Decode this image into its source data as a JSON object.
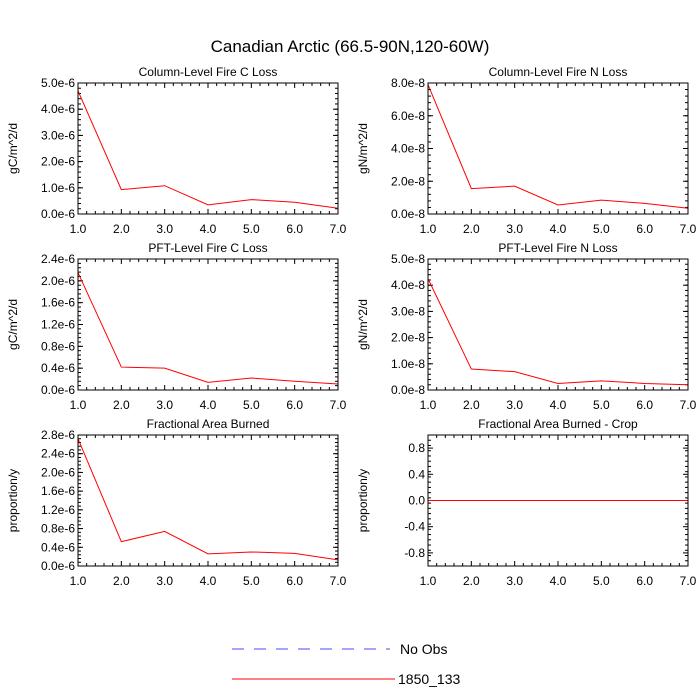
{
  "figure": {
    "title": "Canadian Arctic (66.5-90N,120-60W)"
  },
  "legend": {
    "entries": [
      {
        "label": "No Obs",
        "color": "#4a4aff",
        "dash": "dashed"
      },
      {
        "label": "1850_133",
        "color": "#ff0000",
        "dash": "solid"
      }
    ]
  },
  "chart_data": [
    {
      "type": "line",
      "title": "Column-Level Fire C Loss",
      "ylabel": "gC/m^2/d",
      "xlim": [
        1.0,
        7.0
      ],
      "ylim": [
        0,
        5e-06
      ],
      "xticks": [
        "1.0",
        "2.0",
        "3.0",
        "4.0",
        "5.0",
        "6.0",
        "7.0"
      ],
      "yticks": [
        {
          "value": 0,
          "label": "0.0e-6"
        },
        {
          "value": 1e-06,
          "label": "1.0e-6"
        },
        {
          "value": 2e-06,
          "label": "2.0e-6"
        },
        {
          "value": 3e-06,
          "label": "3.0e-6"
        },
        {
          "value": 4e-06,
          "label": "4.0e-6"
        },
        {
          "value": 5e-06,
          "label": "5.0e-6"
        }
      ],
      "series": [
        {
          "name": "1850_133",
          "x": [
            1,
            2,
            3,
            4,
            5,
            6,
            7
          ],
          "values": [
            4.7e-06,
            9.3e-07,
            1.08e-06,
            3.5e-07,
            5.5e-07,
            4.5e-07,
            2.2e-07
          ]
        }
      ]
    },
    {
      "type": "line",
      "title": "Column-Level Fire N Loss",
      "ylabel": "gN/m^2/d",
      "xlim": [
        1.0,
        7.0
      ],
      "ylim": [
        0,
        8e-08
      ],
      "xticks": [
        "1.0",
        "2.0",
        "3.0",
        "4.0",
        "5.0",
        "6.0",
        "7.0"
      ],
      "yticks": [
        {
          "value": 0,
          "label": "0.0e-8"
        },
        {
          "value": 2e-08,
          "label": "2.0e-8"
        },
        {
          "value": 4e-08,
          "label": "4.0e-8"
        },
        {
          "value": 6e-08,
          "label": "6.0e-8"
        },
        {
          "value": 8e-08,
          "label": "8.0e-8"
        }
      ],
      "series": [
        {
          "name": "1850_133",
          "x": [
            1,
            2,
            3,
            4,
            5,
            6,
            7
          ],
          "values": [
            7.9e-08,
            1.55e-08,
            1.7e-08,
            5.5e-09,
            8.5e-09,
            6.5e-09,
            3.5e-09
          ]
        }
      ]
    },
    {
      "type": "line",
      "title": "PFT-Level Fire C Loss",
      "ylabel": "gC/m^2/d",
      "xlim": [
        1.0,
        7.0
      ],
      "ylim": [
        0,
        2.4e-06
      ],
      "xticks": [
        "1.0",
        "2.0",
        "3.0",
        "4.0",
        "5.0",
        "6.0",
        "7.0"
      ],
      "yticks": [
        {
          "value": 0,
          "label": "0.0e-6"
        },
        {
          "value": 4e-07,
          "label": "0.4e-6"
        },
        {
          "value": 8e-07,
          "label": "0.8e-6"
        },
        {
          "value": 1.2e-06,
          "label": "1.2e-6"
        },
        {
          "value": 1.6e-06,
          "label": "1.6e-6"
        },
        {
          "value": 2e-06,
          "label": "2.0e-6"
        },
        {
          "value": 2.4e-06,
          "label": "2.4e-6"
        }
      ],
      "series": [
        {
          "name": "1850_133",
          "x": [
            1,
            2,
            3,
            4,
            5,
            6,
            7
          ],
          "values": [
            2.15e-06,
            4.2e-07,
            4e-07,
            1.4e-07,
            2.2e-07,
            1.6e-07,
            1.1e-07
          ]
        }
      ]
    },
    {
      "type": "line",
      "title": "PFT-Level Fire N Loss",
      "ylabel": "gN/m^2/d",
      "xlim": [
        1.0,
        7.0
      ],
      "ylim": [
        0,
        5e-08
      ],
      "xticks": [
        "1.0",
        "2.0",
        "3.0",
        "4.0",
        "5.0",
        "6.0",
        "7.0"
      ],
      "yticks": [
        {
          "value": 0,
          "label": "0.0e-8"
        },
        {
          "value": 1e-08,
          "label": "1.0e-8"
        },
        {
          "value": 2e-08,
          "label": "2.0e-8"
        },
        {
          "value": 3e-08,
          "label": "3.0e-8"
        },
        {
          "value": 4e-08,
          "label": "4.0e-8"
        },
        {
          "value": 5e-08,
          "label": "5.0e-8"
        }
      ],
      "series": [
        {
          "name": "1850_133",
          "x": [
            1,
            2,
            3,
            4,
            5,
            6,
            7
          ],
          "values": [
            4.25e-08,
            8e-09,
            7e-09,
            2.5e-09,
            3.5e-09,
            2.5e-09,
            2e-09
          ]
        }
      ]
    },
    {
      "type": "line",
      "title": "Fractional Area Burned",
      "ylabel": "proportion/y",
      "xlim": [
        1.0,
        7.0
      ],
      "ylim": [
        0,
        2.8e-06
      ],
      "xticks": [
        "1.0",
        "2.0",
        "3.0",
        "4.0",
        "5.0",
        "6.0",
        "7.0"
      ],
      "yticks": [
        {
          "value": 0,
          "label": "0.0e-6"
        },
        {
          "value": 4e-07,
          "label": "0.4e-6"
        },
        {
          "value": 8e-07,
          "label": "0.8e-6"
        },
        {
          "value": 1.2e-06,
          "label": "1.2e-6"
        },
        {
          "value": 1.6e-06,
          "label": "1.6e-6"
        },
        {
          "value": 2e-06,
          "label": "2.0e-6"
        },
        {
          "value": 2.4e-06,
          "label": "2.4e-6"
        },
        {
          "value": 2.8e-06,
          "label": "2.8e-6"
        }
      ],
      "series": [
        {
          "name": "1850_133",
          "x": [
            1,
            2,
            3,
            4,
            5,
            6,
            7
          ],
          "values": [
            2.72e-06,
            5.2e-07,
            7.4e-07,
            2.6e-07,
            3e-07,
            2.7e-07,
            1.3e-07
          ]
        }
      ]
    },
    {
      "type": "line",
      "title": "Fractional Area Burned - Crop",
      "ylabel": "proportion/y",
      "xlim": [
        1.0,
        7.0
      ],
      "ylim": [
        -1.0,
        1.0
      ],
      "xticks": [
        "1.0",
        "2.0",
        "3.0",
        "4.0",
        "5.0",
        "6.0",
        "7.0"
      ],
      "yticks": [
        {
          "value": -0.8,
          "label": "-0.8"
        },
        {
          "value": -0.4,
          "label": "-0.4"
        },
        {
          "value": 0.0,
          "label": "0.0"
        },
        {
          "value": 0.4,
          "label": "0.4"
        },
        {
          "value": 0.8,
          "label": "0.8"
        }
      ],
      "series": [
        {
          "name": "1850_133",
          "x": [
            1,
            2,
            3,
            4,
            5,
            6,
            7
          ],
          "values": [
            0,
            0,
            0,
            0,
            0,
            0,
            0
          ]
        }
      ]
    }
  ]
}
